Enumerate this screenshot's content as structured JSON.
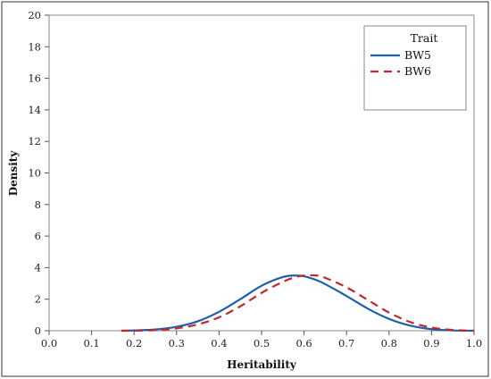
{
  "chart_data": {
    "type": "line",
    "title": "",
    "xlabel": "Heritability",
    "ylabel": "Density",
    "xlim": [
      0.0,
      1.0
    ],
    "ylim": [
      0,
      20
    ],
    "x_ticks": [
      "0.0",
      "0.1",
      "0.2",
      "0.3",
      "0.4",
      "0.5",
      "0.6",
      "0.7",
      "0.8",
      "0.9",
      "1.0"
    ],
    "y_ticks": [
      "0",
      "2",
      "4",
      "6",
      "8",
      "10",
      "12",
      "14",
      "16",
      "18",
      "20"
    ],
    "grid": false,
    "legend": {
      "title": "Trait",
      "position": "top-right"
    },
    "x": [
      0.17,
      0.2,
      0.25,
      0.3,
      0.35,
      0.4,
      0.45,
      0.5,
      0.55,
      0.58,
      0.6,
      0.63,
      0.65,
      0.7,
      0.75,
      0.8,
      0.85,
      0.9,
      0.95,
      1.0
    ],
    "series": [
      {
        "name": "BW5",
        "color": "#1f5fa8",
        "style": "solid",
        "values": [
          0.0,
          0.02,
          0.08,
          0.25,
          0.6,
          1.2,
          2.0,
          2.85,
          3.4,
          3.5,
          3.45,
          3.2,
          2.95,
          2.2,
          1.4,
          0.75,
          0.32,
          0.1,
          0.02,
          0.0
        ]
      },
      {
        "name": "BW6",
        "color": "#c0282d",
        "style": "dashed",
        "values": [
          0.0,
          0.0,
          0.04,
          0.15,
          0.4,
          0.85,
          1.55,
          2.4,
          3.1,
          3.4,
          3.5,
          3.5,
          3.35,
          2.75,
          1.95,
          1.15,
          0.55,
          0.2,
          0.05,
          0.0
        ]
      }
    ]
  }
}
